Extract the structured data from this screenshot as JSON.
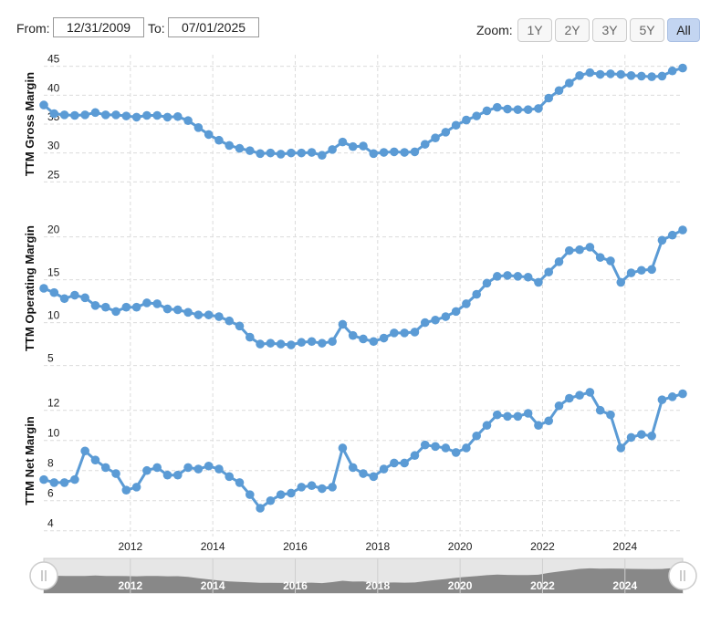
{
  "controls": {
    "from_label": "From:",
    "from_value": "12/31/2009",
    "to_label": "To:",
    "to_value": "07/01/2025",
    "zoom_label": "Zoom:",
    "zoom_options": [
      "1Y",
      "2Y",
      "3Y",
      "5Y",
      "All"
    ],
    "zoom_selected": "All"
  },
  "colors": {
    "series": "#5b9bd5",
    "navigator_area": "#888888",
    "active_zoom": "#c3d5f1"
  },
  "chart_data": [
    {
      "type": "line",
      "ylabel": "TTM Gross Margin",
      "yticks": [
        25,
        30,
        35,
        40,
        45
      ],
      "ylim": [
        23,
        47
      ],
      "x": [
        2009.9,
        2010.15,
        2010.4,
        2010.65,
        2010.9,
        2011.15,
        2011.4,
        2011.65,
        2011.9,
        2012.15,
        2012.4,
        2012.65,
        2012.9,
        2013.15,
        2013.4,
        2013.65,
        2013.9,
        2014.15,
        2014.4,
        2014.65,
        2014.9,
        2015.15,
        2015.4,
        2015.65,
        2015.9,
        2016.15,
        2016.4,
        2016.65,
        2016.9,
        2017.15,
        2017.4,
        2017.65,
        2017.9,
        2018.15,
        2018.4,
        2018.65,
        2018.9,
        2019.15,
        2019.4,
        2019.65,
        2019.9,
        2020.15,
        2020.4,
        2020.65,
        2020.9,
        2021.15,
        2021.4,
        2021.65,
        2021.9,
        2022.15,
        2022.4,
        2022.65,
        2022.9,
        2023.15,
        2023.4,
        2023.65,
        2023.9,
        2024.15,
        2024.4,
        2024.65,
        2024.9,
        2025.15,
        2025.4
      ],
      "values": [
        38.3,
        36.8,
        36.6,
        36.5,
        36.6,
        37.0,
        36.6,
        36.6,
        36.4,
        36.2,
        36.5,
        36.5,
        36.2,
        36.3,
        35.6,
        34.4,
        33.2,
        32.2,
        31.3,
        30.8,
        30.4,
        29.9,
        30.0,
        29.8,
        30.0,
        30.0,
        30.1,
        29.6,
        30.6,
        31.9,
        31.1,
        31.2,
        29.9,
        30.1,
        30.2,
        30.1,
        30.2,
        31.5,
        32.6,
        33.6,
        34.8,
        35.7,
        36.4,
        37.3,
        37.9,
        37.6,
        37.5,
        37.5,
        37.7,
        39.5,
        40.8,
        42.1,
        43.4,
        43.9,
        43.6,
        43.7,
        43.6,
        43.4,
        43.3,
        43.2,
        43.3,
        44.2,
        44.7
      ]
    },
    {
      "type": "line",
      "ylabel": "TTM Operating Margin",
      "yticks": [
        5,
        10,
        15,
        20
      ],
      "ylim": [
        4,
        24
      ],
      "x": [
        2009.9,
        2010.15,
        2010.4,
        2010.65,
        2010.9,
        2011.15,
        2011.4,
        2011.65,
        2011.9,
        2012.15,
        2012.4,
        2012.65,
        2012.9,
        2013.15,
        2013.4,
        2013.65,
        2013.9,
        2014.15,
        2014.4,
        2014.65,
        2014.9,
        2015.15,
        2015.4,
        2015.65,
        2015.9,
        2016.15,
        2016.4,
        2016.65,
        2016.9,
        2017.15,
        2017.4,
        2017.65,
        2017.9,
        2018.15,
        2018.4,
        2018.65,
        2018.9,
        2019.15,
        2019.4,
        2019.65,
        2019.9,
        2020.15,
        2020.4,
        2020.65,
        2020.9,
        2021.15,
        2021.4,
        2021.65,
        2021.9,
        2022.15,
        2022.4,
        2022.65,
        2022.9,
        2023.15,
        2023.4,
        2023.65,
        2023.9,
        2024.15,
        2024.4,
        2024.65,
        2024.9,
        2025.15,
        2025.4
      ],
      "values": [
        14.0,
        13.5,
        12.8,
        13.2,
        12.9,
        12.0,
        11.8,
        11.3,
        11.8,
        11.8,
        12.3,
        12.2,
        11.6,
        11.5,
        11.2,
        10.9,
        10.9,
        10.7,
        10.2,
        9.6,
        8.3,
        7.5,
        7.6,
        7.5,
        7.4,
        7.7,
        7.8,
        7.6,
        7.8,
        9.8,
        8.5,
        8.1,
        7.8,
        8.2,
        8.8,
        8.8,
        8.9,
        10.0,
        10.3,
        10.7,
        11.3,
        12.2,
        13.3,
        14.6,
        15.4,
        15.5,
        15.4,
        15.3,
        14.7,
        15.9,
        17.1,
        18.4,
        18.5,
        18.8,
        17.6,
        17.2,
        14.7,
        15.8,
        16.1,
        16.2,
        19.6,
        20.2,
        20.8
      ]
    },
    {
      "type": "line",
      "ylabel": "TTM Net Margin",
      "yticks": [
        4,
        6,
        8,
        10,
        12
      ],
      "ylim": [
        3.5,
        13.8
      ],
      "x": [
        2009.9,
        2010.15,
        2010.4,
        2010.65,
        2010.9,
        2011.15,
        2011.4,
        2011.65,
        2011.9,
        2012.15,
        2012.4,
        2012.65,
        2012.9,
        2013.15,
        2013.4,
        2013.65,
        2013.9,
        2014.15,
        2014.4,
        2014.65,
        2014.9,
        2015.15,
        2015.4,
        2015.65,
        2015.9,
        2016.15,
        2016.4,
        2016.65,
        2016.9,
        2017.15,
        2017.4,
        2017.65,
        2017.9,
        2018.15,
        2018.4,
        2018.65,
        2018.9,
        2019.15,
        2019.4,
        2019.65,
        2019.9,
        2020.15,
        2020.4,
        2020.65,
        2020.9,
        2021.15,
        2021.4,
        2021.65,
        2021.9,
        2022.15,
        2022.4,
        2022.65,
        2022.9,
        2023.15,
        2023.4,
        2023.65,
        2023.9,
        2024.15,
        2024.4,
        2024.65,
        2024.9,
        2025.15,
        2025.4
      ],
      "values": [
        7.4,
        7.2,
        7.2,
        7.4,
        9.3,
        8.7,
        8.2,
        7.8,
        6.7,
        6.9,
        8.0,
        8.2,
        7.7,
        7.7,
        8.2,
        8.1,
        8.3,
        8.1,
        7.6,
        7.2,
        6.4,
        5.5,
        6.0,
        6.4,
        6.5,
        6.9,
        7.0,
        6.8,
        6.9,
        9.5,
        8.2,
        7.8,
        7.6,
        8.1,
        8.5,
        8.5,
        9.0,
        9.7,
        9.6,
        9.5,
        9.2,
        9.5,
        10.3,
        11.0,
        11.7,
        11.6,
        11.6,
        11.8,
        11.0,
        11.3,
        12.3,
        12.8,
        13.0,
        13.2,
        12.0,
        11.7,
        9.5,
        10.2,
        10.4,
        10.3,
        12.7,
        12.9,
        13.1
      ]
    }
  ],
  "x_axis": {
    "ticks": [
      2012,
      2014,
      2016,
      2018,
      2020,
      2022,
      2024
    ],
    "tick_labels": [
      "2012",
      "2014",
      "2016",
      "2018",
      "2020",
      "2022",
      "2024"
    ],
    "range": [
      2009.9,
      2025.4
    ]
  },
  "navigator": {
    "tick_labels": [
      "2012",
      "2014",
      "2016",
      "2018",
      "2020",
      "2022",
      "2024"
    ]
  }
}
